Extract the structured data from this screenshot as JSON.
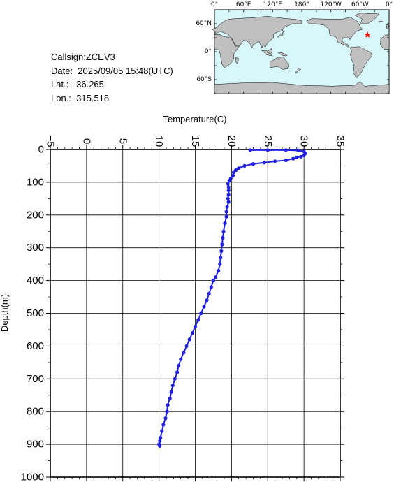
{
  "info": {
    "callsign": "Callsign:ZCEV3",
    "date": "Date:  2025/09/05 15:48(UTC)",
    "lat": "Lat.:   36.265",
    "lon": "Lon.:  315.518"
  },
  "map": {
    "top_labels": [
      "0°",
      "60°E",
      "120°E",
      "180°",
      "120°W",
      "60°W",
      "0°"
    ],
    "side_labels": [
      "60°N",
      "0°",
      "60°S"
    ],
    "marker_lon": 315.518,
    "marker_lat": 36.265,
    "ocean_color": "#d8f7fb",
    "land_color": "#bfbfbf",
    "marker_color": "#ff0000"
  },
  "chart_data": {
    "type": "line",
    "title": "",
    "xlabel": "Temperature(C)",
    "ylabel": "Depth(m)",
    "xlim": [
      -5,
      35
    ],
    "ylim": [
      0,
      1000
    ],
    "y_inverted": true,
    "x_axis_position": "top",
    "xticks": [
      -5,
      0,
      5,
      10,
      15,
      20,
      25,
      30,
      35
    ],
    "yticks": [
      0,
      100,
      200,
      300,
      400,
      500,
      600,
      700,
      800,
      900,
      1000
    ],
    "grid": true,
    "series_color": "#2020e0",
    "series": [
      {
        "points": [
          [
            22.6,
            2
          ],
          [
            25.0,
            2
          ],
          [
            27.5,
            2
          ],
          [
            29.2,
            3
          ],
          [
            30.0,
            6
          ],
          [
            30.2,
            12
          ],
          [
            30.0,
            18
          ],
          [
            29.6,
            22
          ],
          [
            29.0,
            24
          ],
          [
            28.5,
            28
          ],
          [
            27.5,
            33
          ],
          [
            26.0,
            36
          ],
          [
            24.5,
            40
          ],
          [
            23.0,
            44
          ],
          [
            21.8,
            50
          ],
          [
            21.0,
            57
          ],
          [
            20.6,
            63
          ],
          [
            20.3,
            70
          ],
          [
            20.2,
            80
          ],
          [
            19.9,
            88
          ],
          [
            19.7,
            95
          ],
          [
            19.5,
            105
          ],
          [
            19.6,
            115
          ],
          [
            19.6,
            125
          ],
          [
            19.6,
            138
          ],
          [
            19.5,
            150
          ],
          [
            19.6,
            160
          ],
          [
            19.4,
            175
          ],
          [
            19.3,
            190
          ],
          [
            19.3,
            205
          ],
          [
            19.1,
            225
          ],
          [
            18.9,
            250
          ],
          [
            18.8,
            270
          ],
          [
            18.7,
            290
          ],
          [
            18.6,
            310
          ],
          [
            18.5,
            330
          ],
          [
            18.4,
            350
          ],
          [
            18.2,
            370
          ],
          [
            17.8,
            390
          ],
          [
            17.5,
            400
          ],
          [
            17.2,
            420
          ],
          [
            16.9,
            440
          ],
          [
            16.6,
            460
          ],
          [
            16.2,
            480
          ],
          [
            15.8,
            500
          ],
          [
            15.4,
            520
          ],
          [
            15.0,
            540
          ],
          [
            14.6,
            560
          ],
          [
            14.2,
            580
          ],
          [
            13.8,
            600
          ],
          [
            13.4,
            620
          ],
          [
            13.0,
            640
          ],
          [
            12.7,
            660
          ],
          [
            12.5,
            680
          ],
          [
            12.2,
            700
          ],
          [
            11.9,
            720
          ],
          [
            11.7,
            740
          ],
          [
            11.5,
            760
          ],
          [
            11.2,
            780
          ],
          [
            11.1,
            800
          ],
          [
            10.9,
            820
          ],
          [
            10.6,
            840
          ],
          [
            10.4,
            860
          ],
          [
            10.2,
            880
          ],
          [
            10.1,
            890
          ],
          [
            10.0,
            900
          ],
          [
            10.1,
            905
          ]
        ]
      }
    ]
  }
}
